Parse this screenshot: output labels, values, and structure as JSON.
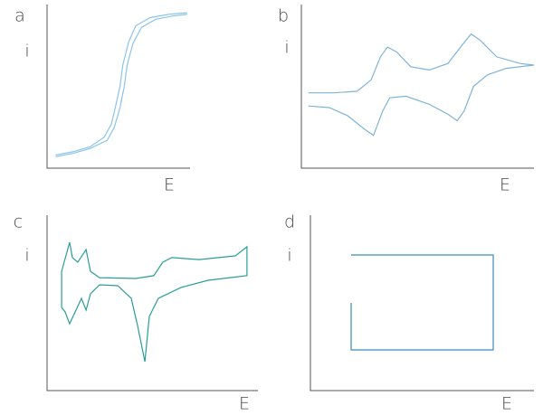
{
  "chart_data": [
    {
      "type": "line",
      "label": "a",
      "x_label": "E",
      "y_label": "i",
      "xlim": [
        0,
        100
      ],
      "ylim": [
        0,
        100
      ],
      "series": [
        {
          "color": "#8cc4ea",
          "x": [
            6,
            18,
            30,
            40,
            45,
            48,
            51,
            53,
            57,
            62,
            72,
            85,
            98
          ],
          "values": [
            8,
            10,
            13,
            19,
            27,
            38,
            50,
            63,
            77,
            87,
            92,
            94,
            95
          ]
        },
        {
          "color": "#8cc4ea",
          "x": [
            6,
            18,
            30,
            42,
            47,
            51,
            54,
            56,
            60,
            66,
            76,
            88,
            98
          ],
          "values": [
            7,
            9,
            12,
            17,
            25,
            37,
            50,
            63,
            76,
            86,
            91,
            93,
            94
          ]
        }
      ]
    },
    {
      "type": "line",
      "label": "b",
      "x_label": "E",
      "y_label": "i",
      "xlim": [
        0,
        100
      ],
      "ylim": [
        0,
        100
      ],
      "series": [
        {
          "color": "#7fb4d8",
          "x": [
            3,
            14,
            24,
            30,
            34,
            37,
            41,
            47,
            55,
            63,
            69,
            73,
            77,
            84,
            94,
            100,
            88,
            80,
            74,
            70,
            67,
            63,
            55,
            45,
            38,
            35,
            31,
            27,
            20,
            12,
            3
          ],
          "values": [
            46,
            46,
            47,
            54,
            68,
            74,
            71,
            62,
            60,
            64,
            75,
            82,
            78,
            68,
            64,
            63,
            61,
            57,
            50,
            35,
            29,
            33,
            39,
            44,
            43,
            35,
            20,
            24,
            32,
            37,
            38
          ]
        }
      ]
    },
    {
      "type": "line",
      "label": "c",
      "x_label": "E",
      "y_label": "i",
      "xlim": [
        0,
        100
      ],
      "ylim": [
        0,
        100
      ],
      "series": [
        {
          "color": "#2a9d99",
          "x": [
            6.9,
            10.7,
            12,
            14.6,
            18.5,
            20.6,
            24.9,
            42.1,
            50.6,
            54.9,
            59.2,
            72.1,
            89.3,
            94.8,
            94.8,
            76.4,
            63.5,
            52.8,
            48.5,
            46.4,
            42.9,
            39.9,
            33.5,
            24.9,
            20.6,
            18.5,
            16.3,
            13.3,
            10.7,
            8.6,
            6.9,
            6.9
          ],
          "values": [
            68,
            84.5,
            75.8,
            73.2,
            80.4,
            68,
            64.4,
            63.9,
            65.5,
            73.2,
            75.8,
            74.7,
            76.8,
            82,
            65.5,
            62.9,
            58.8,
            52.6,
            42.3,
            16.5,
            37.1,
            52.6,
            59.8,
            60.3,
            55.2,
            45.9,
            52.6,
            44.8,
            38.1,
            44.8,
            47.4,
            68
          ]
        }
      ]
    },
    {
      "type": "line",
      "label": "d",
      "x_label": "E",
      "y_label": "i",
      "xlim": [
        0,
        100
      ],
      "ylim": [
        0,
        100
      ],
      "series": [
        {
          "color": "#3a8dbf",
          "x": [
            18.2,
            18.2,
            81.8,
            81.8,
            18.2
          ],
          "values": [
            50,
            23.2,
            23.2,
            77.3,
            77.3
          ]
        }
      ]
    }
  ]
}
